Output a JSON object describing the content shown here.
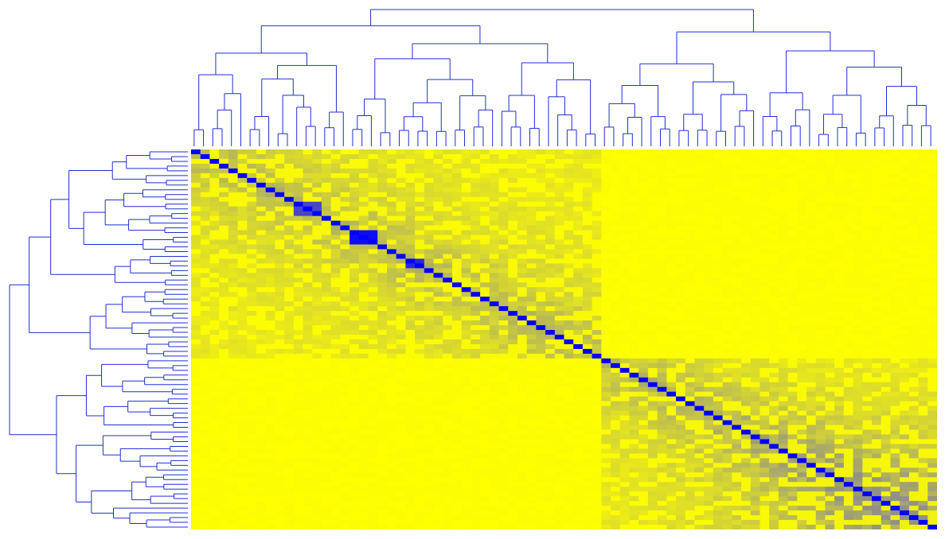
{
  "chart_data": {
    "type": "heatmap",
    "title": "",
    "xlabel": "",
    "ylabel": "",
    "rows": 80,
    "cols": 80,
    "diagonal_value": 1.0,
    "clusters": [
      {
        "start": 0,
        "end": 44
      },
      {
        "start": 44,
        "end": 80
      }
    ],
    "high_similarity_blocks": [
      {
        "start": 11,
        "end": 14,
        "value": 0.75
      },
      {
        "start": 17,
        "end": 20,
        "value": 0.95
      },
      {
        "start": 23,
        "end": 25,
        "value": 0.85
      }
    ],
    "dendrogram_top": true,
    "dendrogram_left": true,
    "grid": false,
    "legend": "none",
    "colormap": {
      "low": "#ffff00",
      "mid": "#8c8c8c",
      "high": "#0000ff"
    }
  },
  "colors": {
    "dendrogram": "#1f2fd0",
    "background": "#ffffff"
  }
}
